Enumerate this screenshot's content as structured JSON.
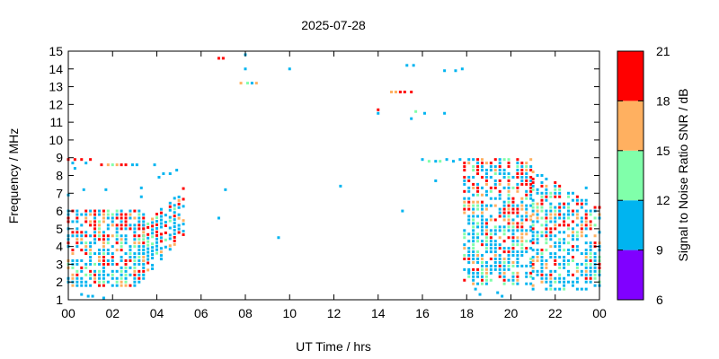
{
  "chart_data": {
    "type": "scatter",
    "title": "2025-07-28",
    "xlabel": "UT Time / hrs",
    "ylabel": "Frequency / MHz",
    "xlim": [
      0,
      24
    ],
    "ylim": [
      1,
      15
    ],
    "x_ticks": [
      "00",
      "02",
      "04",
      "06",
      "08",
      "10",
      "12",
      "14",
      "16",
      "18",
      "20",
      "22",
      "00"
    ],
    "y_ticks": [
      "1",
      "2",
      "3",
      "4",
      "5",
      "6",
      "7",
      "8",
      "9",
      "10",
      "11",
      "12",
      "13",
      "14",
      "15"
    ],
    "grid": false,
    "colorbar": {
      "label": "Signal to Noise Ratio SNR / dB",
      "ticks": [
        "6",
        "9",
        "12",
        "15",
        "18",
        "21"
      ],
      "bins": [
        {
          "min": 6,
          "max": 9,
          "color": "#8000ff"
        },
        {
          "min": 9,
          "max": 12,
          "color": "#00b4f0"
        },
        {
          "min": 12,
          "max": 15,
          "color": "#80ffaa"
        },
        {
          "min": 15,
          "max": 18,
          "color": "#ffb060"
        },
        {
          "min": 18,
          "max": 21,
          "color": "#ff0000"
        }
      ]
    },
    "regions": [
      {
        "x": [
          0.0,
          3.4
        ],
        "ylo": 1.8,
        "yhi": 6.0
      },
      {
        "x": [
          3.4,
          5.3
        ],
        "ylo": [
          2.2,
          4.8
        ],
        "yhi": [
          5.2,
          7.4
        ]
      },
      {
        "x": [
          17.9,
          21.0
        ],
        "ylo": 1.9,
        "yhi": 8.9
      },
      {
        "x": [
          21.0,
          24.0
        ],
        "ylo": 1.6,
        "yhi": [
          8.3,
          6.2
        ]
      }
    ],
    "points": [
      {
        "x": 0.0,
        "y": 8.9,
        "snr": 19
      },
      {
        "x": 0.3,
        "y": 8.9,
        "snr": 19
      },
      {
        "x": 0.6,
        "y": 8.9,
        "snr": 19
      },
      {
        "x": 1.0,
        "y": 8.9,
        "snr": 19
      },
      {
        "x": 0.2,
        "y": 8.7,
        "snr": 10
      },
      {
        "x": 0.3,
        "y": 8.4,
        "snr": 10
      },
      {
        "x": 0.8,
        "y": 8.7,
        "snr": 10
      },
      {
        "x": 1.5,
        "y": 8.6,
        "snr": 19
      },
      {
        "x": 1.8,
        "y": 8.6,
        "snr": 16
      },
      {
        "x": 2.0,
        "y": 8.6,
        "snr": 13
      },
      {
        "x": 2.2,
        "y": 8.6,
        "snr": 16
      },
      {
        "x": 2.4,
        "y": 8.6,
        "snr": 19
      },
      {
        "x": 2.6,
        "y": 8.6,
        "snr": 19
      },
      {
        "x": 2.9,
        "y": 8.6,
        "snr": 10
      },
      {
        "x": 3.1,
        "y": 8.6,
        "snr": 10
      },
      {
        "x": 0.0,
        "y": 6.9,
        "snr": 10
      },
      {
        "x": 0.7,
        "y": 7.2,
        "snr": 10
      },
      {
        "x": 1.7,
        "y": 7.2,
        "snr": 10
      },
      {
        "x": 3.3,
        "y": 7.3,
        "snr": 10
      },
      {
        "x": 3.3,
        "y": 6.8,
        "snr": 10
      },
      {
        "x": 0.6,
        "y": 1.3,
        "snr": 10
      },
      {
        "x": 0.9,
        "y": 1.2,
        "snr": 10
      },
      {
        "x": 1.1,
        "y": 1.2,
        "snr": 10
      },
      {
        "x": 1.6,
        "y": 1.1,
        "snr": 10
      },
      {
        "x": 3.9,
        "y": 8.6,
        "snr": 10
      },
      {
        "x": 4.3,
        "y": 8.1,
        "snr": 10
      },
      {
        "x": 4.6,
        "y": 8.1,
        "snr": 10
      },
      {
        "x": 4.9,
        "y": 8.3,
        "snr": 10
      },
      {
        "x": 4.1,
        "y": 7.9,
        "snr": 10
      },
      {
        "x": 6.8,
        "y": 14.6,
        "snr": 19
      },
      {
        "x": 7.0,
        "y": 14.6,
        "snr": 19
      },
      {
        "x": 8.0,
        "y": 14.8,
        "snr": 10
      },
      {
        "x": 8.0,
        "y": 14.0,
        "snr": 10
      },
      {
        "x": 7.8,
        "y": 13.2,
        "snr": 16
      },
      {
        "x": 8.1,
        "y": 13.2,
        "snr": 13
      },
      {
        "x": 8.3,
        "y": 13.2,
        "snr": 10
      },
      {
        "x": 8.5,
        "y": 13.2,
        "snr": 16
      },
      {
        "x": 10.0,
        "y": 14.0,
        "snr": 10
      },
      {
        "x": 6.8,
        "y": 5.6,
        "snr": 10
      },
      {
        "x": 7.1,
        "y": 7.2,
        "snr": 10
      },
      {
        "x": 9.5,
        "y": 4.5,
        "snr": 10
      },
      {
        "x": 12.3,
        "y": 7.4,
        "snr": 10
      },
      {
        "x": 14.0,
        "y": 11.7,
        "snr": 19
      },
      {
        "x": 14.0,
        "y": 11.5,
        "snr": 10
      },
      {
        "x": 14.6,
        "y": 12.7,
        "snr": 16
      },
      {
        "x": 14.8,
        "y": 12.7,
        "snr": 16
      },
      {
        "x": 15.0,
        "y": 12.7,
        "snr": 19
      },
      {
        "x": 15.2,
        "y": 12.7,
        "snr": 19
      },
      {
        "x": 15.5,
        "y": 12.7,
        "snr": 19
      },
      {
        "x": 15.3,
        "y": 14.2,
        "snr": 10
      },
      {
        "x": 15.6,
        "y": 14.2,
        "snr": 10
      },
      {
        "x": 15.1,
        "y": 6.0,
        "snr": 10
      },
      {
        "x": 15.5,
        "y": 11.2,
        "snr": 10
      },
      {
        "x": 15.7,
        "y": 11.6,
        "snr": 13
      },
      {
        "x": 16.1,
        "y": 11.5,
        "snr": 10
      },
      {
        "x": 17.0,
        "y": 11.5,
        "snr": 10
      },
      {
        "x": 17.0,
        "y": 13.9,
        "snr": 10
      },
      {
        "x": 17.5,
        "y": 13.9,
        "snr": 10
      },
      {
        "x": 17.8,
        "y": 14.0,
        "snr": 10
      },
      {
        "x": 16.0,
        "y": 8.9,
        "snr": 10
      },
      {
        "x": 16.3,
        "y": 8.8,
        "snr": 13
      },
      {
        "x": 16.6,
        "y": 8.8,
        "snr": 10
      },
      {
        "x": 16.8,
        "y": 8.8,
        "snr": 13
      },
      {
        "x": 17.1,
        "y": 8.9,
        "snr": 10
      },
      {
        "x": 17.4,
        "y": 8.8,
        "snr": 10
      },
      {
        "x": 17.7,
        "y": 8.9,
        "snr": 10
      },
      {
        "x": 16.6,
        "y": 7.7,
        "snr": 10
      },
      {
        "x": 18.1,
        "y": 2.6,
        "snr": 10
      },
      {
        "x": 18.4,
        "y": 1.6,
        "snr": 10
      },
      {
        "x": 18.6,
        "y": 1.3,
        "snr": 10
      },
      {
        "x": 19.4,
        "y": 1.4,
        "snr": 10
      },
      {
        "x": 19.6,
        "y": 1.2,
        "snr": 10
      },
      {
        "x": 23.4,
        "y": 7.3,
        "snr": 10
      }
    ]
  }
}
